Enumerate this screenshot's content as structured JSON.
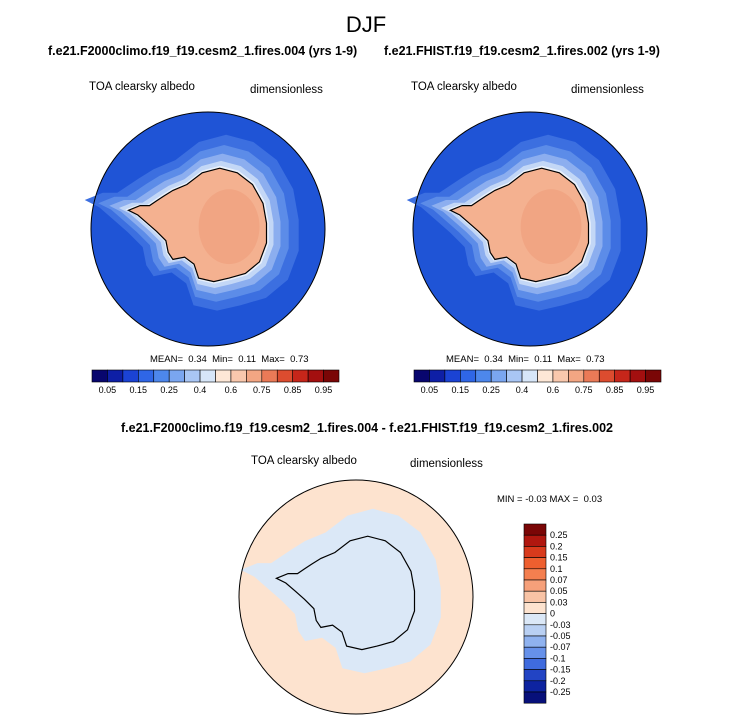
{
  "page_title": "DJF",
  "panels": {
    "left_case": "f.e21.F2000climo.f19_f19.cesm2_1.fires.004 (yrs 1-9)",
    "right_case": "f.e21.FHIST.f19_f19.cesm2_1.fires.002 (yrs 1-9)",
    "diff_case": "f.e21.F2000climo.f19_f19.cesm2_1.fires.004 - f.e21.FHIST.f19_f19.cesm2_1.fires.002"
  },
  "chart_data": [
    {
      "type": "heatmap",
      "title": "TOA clearsky albedo",
      "units": "dimensionless",
      "case": "f.e21.F2000climo.f19_f19.cesm2_1.fires.004 (yrs 1-9)",
      "stats": {
        "mean_label": "MEAN=",
        "mean": "0.34",
        "min_label": "Min=",
        "min": "0.11",
        "max_label": "Max=",
        "max": "0.73"
      },
      "colorbar": {
        "orientation": "horizontal",
        "levels": [
          0.05,
          0.1,
          0.15,
          0.2,
          0.25,
          0.3,
          0.4,
          0.5,
          0.6,
          0.65,
          0.7,
          0.75,
          0.8,
          0.85,
          0.9,
          0.95
        ],
        "tick_labels": [
          "0.05",
          "0.15",
          "0.25",
          "0.4",
          "0.6",
          "0.75",
          "0.85",
          "0.95"
        ]
      }
    },
    {
      "type": "heatmap",
      "title": "TOA clearsky albedo",
      "units": "dimensionless",
      "case": "f.e21.FHIST.f19_f19.cesm2_1.fires.002 (yrs 1-9)",
      "stats": {
        "mean_label": "MEAN=",
        "mean": "0.34",
        "min_label": "Min=",
        "min": "0.11",
        "max_label": "Max=",
        "max": "0.73"
      },
      "colorbar": {
        "orientation": "horizontal",
        "levels": [
          0.05,
          0.1,
          0.15,
          0.2,
          0.25,
          0.3,
          0.4,
          0.5,
          0.6,
          0.65,
          0.7,
          0.75,
          0.8,
          0.85,
          0.9,
          0.95
        ],
        "tick_labels": [
          "0.05",
          "0.15",
          "0.25",
          "0.4",
          "0.6",
          "0.75",
          "0.85",
          "0.95"
        ]
      }
    },
    {
      "type": "heatmap",
      "title": "TOA clearsky albedo",
      "units": "dimensionless",
      "case": "f.e21.F2000climo.f19_f19.cesm2_1.fires.004 - f.e21.FHIST.f19_f19.cesm2_1.fires.002",
      "stats": {
        "min_label": "MIN =",
        "min": "-0.03",
        "max_label": "MAX =",
        "max": "0.03"
      },
      "colorbar": {
        "orientation": "vertical",
        "tick_labels": [
          "0.25",
          "0.2",
          "0.15",
          "0.1",
          "0.07",
          "0.05",
          "0.03",
          "0",
          "-0.03",
          "-0.05",
          "-0.07",
          "-0.1",
          "-0.15",
          "-0.2",
          "-0.25"
        ]
      }
    }
  ],
  "colors": {
    "ocean_blue": "#1f54d6",
    "ice_pink": "#f4b190",
    "inner_pink": "#f1a583",
    "diff_pos": "#fde3cf",
    "diff_neg": "#dbe8f7",
    "seq_bar": [
      "#08066e",
      "#0e1fa6",
      "#1b43d4",
      "#2f66e6",
      "#4d87ec",
      "#7aa6f0",
      "#a9c6f4",
      "#d7e6f8",
      "#fde7d6",
      "#f9c8ad",
      "#f3a683",
      "#ea7a57",
      "#dc4c2f",
      "#c6261a",
      "#a30f0f",
      "#7a0606"
    ],
    "div_bar": [
      "#7a0606",
      "#b0170f",
      "#d83a1c",
      "#ee5f2f",
      "#f47f4f",
      "#f6a07a",
      "#f8c3a5",
      "#fde3cf",
      "#dbe8f7",
      "#b9d0f3",
      "#8fb2ef",
      "#6691ea",
      "#3f6bde",
      "#2244c4",
      "#0d23a0",
      "#07107a"
    ]
  }
}
